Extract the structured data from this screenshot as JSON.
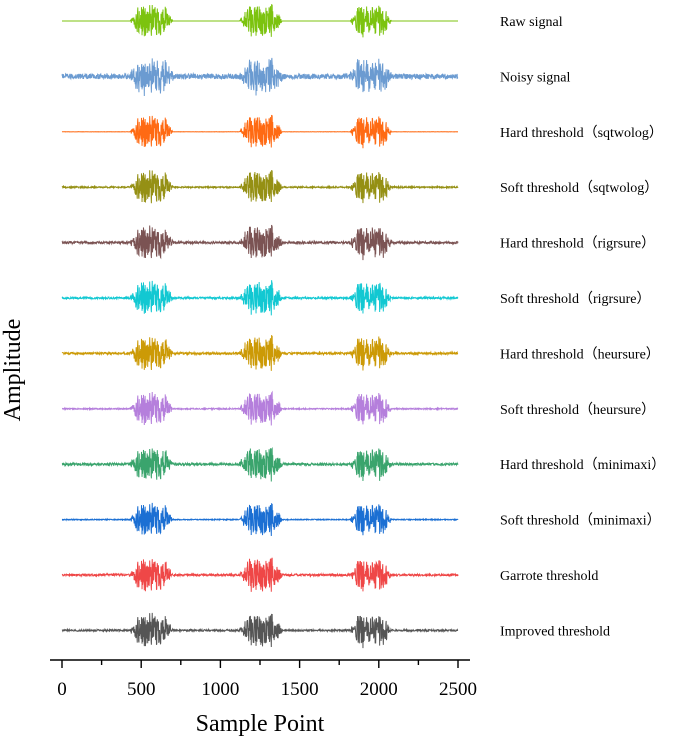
{
  "chart_data": {
    "type": "line",
    "xlabel": "Sample Point",
    "ylabel": "Amplitude",
    "xlim": [
      0,
      2500
    ],
    "x_ticks": [
      0,
      500,
      1000,
      1500,
      2000,
      2500
    ],
    "x_tick_labels": [
      "0",
      "500",
      "1000",
      "1500",
      "2000",
      "2500"
    ],
    "y_ticks_shown": false,
    "grid": false,
    "legend": "series labels placed to the right of each trace",
    "bursts": [
      [
        430,
        700
      ],
      [
        1120,
        1390
      ],
      [
        1820,
        2080
      ]
    ],
    "series": [
      {
        "name": "Raw signal",
        "color": "#7cc30f",
        "noise_level": 0.0
      },
      {
        "name": "Noisy signal",
        "color": "#6b9bd1",
        "noise_level": 0.45
      },
      {
        "name": "Hard threshold（sqtwolog）",
        "color": "#ff6a13",
        "noise_level": 0.02
      },
      {
        "name": "Soft threshold（sqtwolog）",
        "color": "#959014",
        "noise_level": 0.12
      },
      {
        "name": "Hard threshold（rigrsure）",
        "color": "#7b5353",
        "noise_level": 0.2
      },
      {
        "name": "Soft threshold（rigrsure）",
        "color": "#12c8d2",
        "noise_level": 0.16
      },
      {
        "name": "Hard threshold（heursure）",
        "color": "#cc9a06",
        "noise_level": 0.18
      },
      {
        "name": "Soft threshold（heursure）",
        "color": "#b57fdc",
        "noise_level": 0.1
      },
      {
        "name": "Hard threshold（minimaxi）",
        "color": "#3aa46d",
        "noise_level": 0.2
      },
      {
        "name": "Soft threshold（minimaxi）",
        "color": "#1b6fd3",
        "noise_level": 0.08
      },
      {
        "name": "Garrote threshold",
        "color": "#ef4747",
        "noise_level": 0.17
      },
      {
        "name": "Improved threshold",
        "color": "#555555",
        "noise_level": 0.15
      }
    ]
  }
}
